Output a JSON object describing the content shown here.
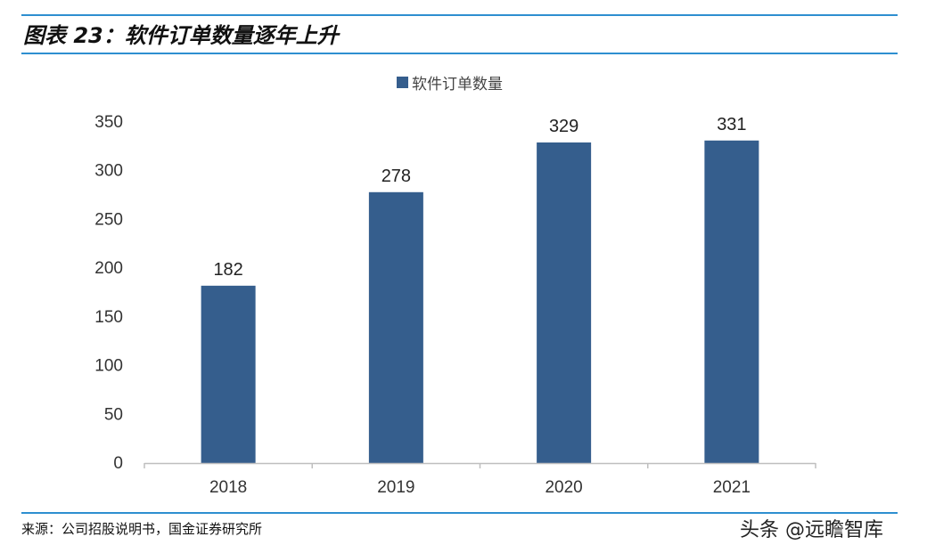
{
  "figure": {
    "title": "图表 23：软件订单数量逐年上升",
    "source": "来源：公司招股说明书，国金证券研究所",
    "watermark": "头条 @远瞻智库"
  },
  "colors": {
    "bar": "#355e8d",
    "rule": "#2e8fd0",
    "axis_text": "#333333",
    "axis_line": "#bfbfbf"
  },
  "chart_data": {
    "type": "bar",
    "title": "",
    "xlabel": "",
    "ylabel": "",
    "categories": [
      "2018",
      "2019",
      "2020",
      "2021"
    ],
    "series": [
      {
        "name": "软件订单数量",
        "values": [
          182,
          278,
          329,
          331
        ]
      }
    ],
    "ylim": [
      0,
      350
    ],
    "yticks": [
      0,
      50,
      100,
      150,
      200,
      250,
      300,
      350
    ],
    "data_labels": true,
    "grid": false,
    "legend": "top-center"
  }
}
